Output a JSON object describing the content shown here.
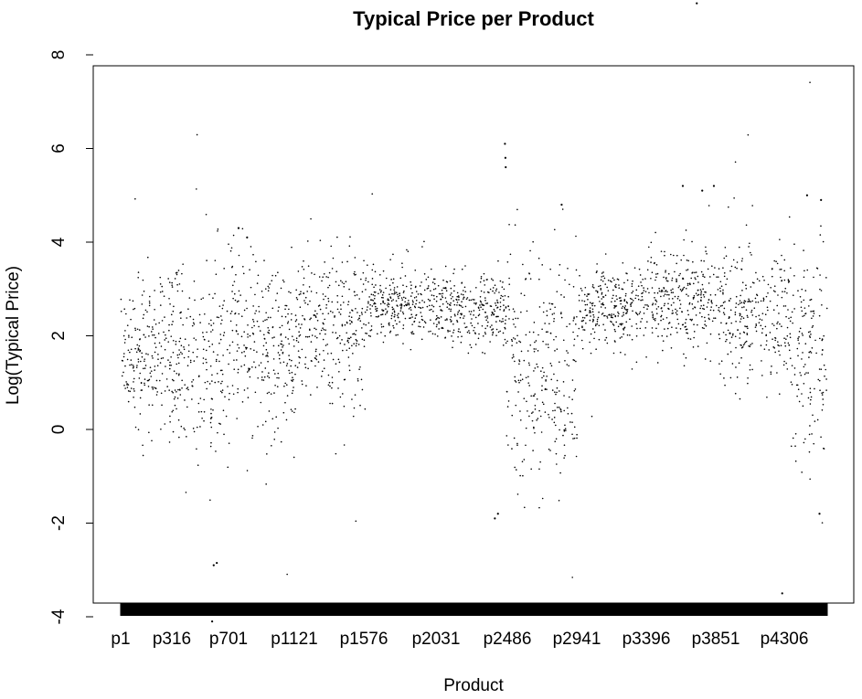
{
  "chart_data": {
    "type": "scatter",
    "title": "Typical Price per Product",
    "xlabel": "Product",
    "ylabel": "Log(Typical Price)",
    "x_tick_labels": [
      "p1",
      "p316",
      "p701",
      "p1121",
      "p1576",
      "p2031",
      "p2486",
      "p2941",
      "p3396",
      "p3851",
      "p4306"
    ],
    "y_ticks": [
      -4,
      -2,
      0,
      2,
      4,
      6,
      8
    ],
    "xlim": [
      1,
      4550
    ],
    "ylim": [
      -4.5,
      9.2
    ],
    "grid": false,
    "legend": "none",
    "point_color": "#000000",
    "segments": [
      {
        "x_range": [
          1,
          315
        ],
        "center": 1.7,
        "spread": 0.7
      },
      {
        "x_range": [
          316,
          700
        ],
        "center": 1.5,
        "spread": 1.0
      },
      {
        "x_range": [
          701,
          1120
        ],
        "center": 1.9,
        "spread": 0.9
      },
      {
        "x_range": [
          1121,
          1575
        ],
        "center": 2.3,
        "spread": 0.8
      },
      {
        "x_range": [
          1576,
          2030
        ],
        "center": 2.7,
        "spread": 0.35
      },
      {
        "x_range": [
          2031,
          2485
        ],
        "center": 2.6,
        "spread": 0.35
      },
      {
        "x_range": [
          2486,
          2940
        ],
        "center": 1.2,
        "spread": 1.2
      },
      {
        "x_range": [
          2941,
          3395
        ],
        "center": 2.6,
        "spread": 0.4
      },
      {
        "x_range": [
          3396,
          3850
        ],
        "center": 2.8,
        "spread": 0.5
      },
      {
        "x_range": [
          3851,
          4305
        ],
        "center": 2.5,
        "spread": 0.7
      },
      {
        "x_range": [
          4306,
          4550
        ],
        "center": 1.8,
        "spread": 1.1
      }
    ],
    "notable_points": [
      {
        "x": 3710,
        "y": 9.1
      },
      {
        "x": 2475,
        "y": 6.1
      },
      {
        "x": 2478,
        "y": 5.8
      },
      {
        "x": 2480,
        "y": 5.6
      },
      {
        "x": 3820,
        "y": 5.2
      },
      {
        "x": 3745,
        "y": 5.1
      },
      {
        "x": 3620,
        "y": 5.2
      },
      {
        "x": 4420,
        "y": 5.0
      },
      {
        "x": 4510,
        "y": 4.9
      },
      {
        "x": 2840,
        "y": 4.8
      },
      {
        "x": 760,
        "y": 4.3
      },
      {
        "x": 815,
        "y": 4.1
      },
      {
        "x": 590,
        "y": -4.1
      },
      {
        "x": 595,
        "y": -3.9
      },
      {
        "x": 4260,
        "y": -3.5
      },
      {
        "x": 2410,
        "y": -1.9
      },
      {
        "x": 2430,
        "y": -1.8
      },
      {
        "x": 4500,
        "y": -1.8
      },
      {
        "x": 600,
        "y": -2.9
      },
      {
        "x": 620,
        "y": -2.85
      }
    ]
  }
}
